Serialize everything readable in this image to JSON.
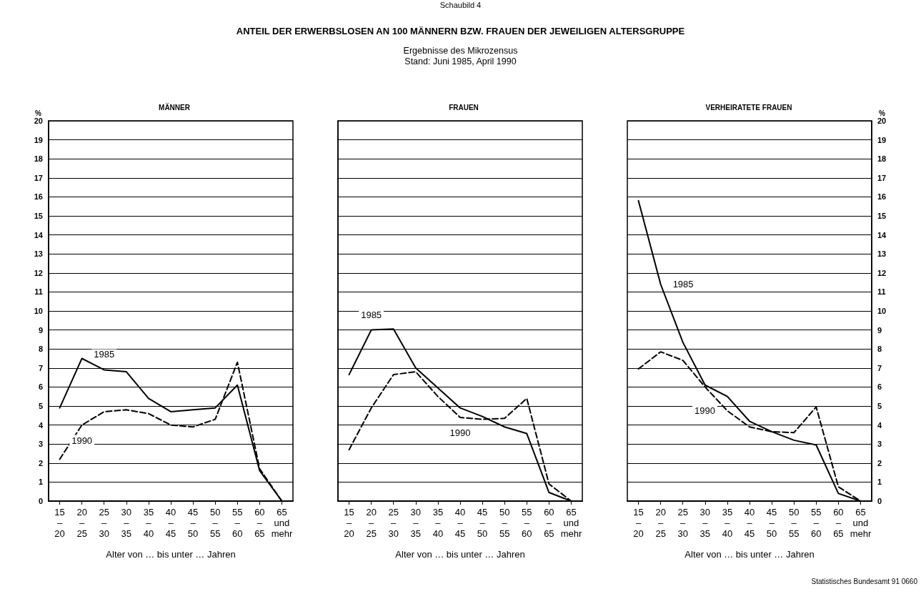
{
  "chart_data": [
    {
      "type": "line",
      "title": "MÄNNER",
      "xlabel": "Alter von … bis unter … Jahren",
      "ylabel": "%",
      "annotations": [
        "Schaubild 4",
        "ANTEIL DER ERWERBSLOSEN AN 100 MÄNNERN BZW. FRAUEN DER JEWEILIGEN ALTERSGRUPPE",
        "Ergebnisse des Mikrozensus",
        "Stand: Juni 1985, April 1990"
      ],
      "categories": [
        "15\n–\n20",
        "20\n–\n25",
        "25\n–\n30",
        "30\n–\n35",
        "35\n–\n40",
        "40\n–\n45",
        "45\n–\n50",
        "50\n–\n55",
        "55\n–\n60",
        "60\n–\n65",
        "65\nund\nmehr"
      ],
      "ylim": [
        0,
        20
      ],
      "yticks": [
        0,
        1,
        2,
        3,
        4,
        5,
        6,
        7,
        8,
        9,
        10,
        11,
        12,
        13,
        14,
        15,
        16,
        17,
        18,
        19,
        20
      ],
      "grid": "y",
      "legend": false,
      "marker": "none",
      "series": [
        {
          "name": "1985",
          "color": "#000000",
          "line_style": "solid",
          "values": [
            4.9,
            7.5,
            6.9,
            6.8,
            5.4,
            4.7,
            4.8,
            4.9,
            6.1,
            1.6,
            0
          ]
        },
        {
          "name": "1990",
          "color": "#000000",
          "line_style": "dashed",
          "values": [
            2.2,
            4.0,
            4.7,
            4.8,
            4.6,
            4.0,
            3.9,
            4.3,
            7.3,
            1.7,
            0
          ]
        }
      ]
    },
    {
      "type": "line",
      "title": "FRAUEN",
      "xlabel": "Alter von … bis unter … Jahren",
      "tick_labels": "x",
      "categories": [
        "15\n–\n20",
        "20\n–\n25",
        "25\n–\n30",
        "30\n–\n35",
        "35\n–\n40",
        "40\n–\n45",
        "45\n–\n50",
        "50\n–\n55",
        "55\n–\n60",
        "60\n–\n65",
        "65\nund\nmehr"
      ],
      "ylim": [
        0,
        20
      ],
      "yticks": [
        0,
        1,
        2,
        3,
        4,
        5,
        6,
        7,
        8,
        9,
        10,
        11,
        12,
        13,
        14,
        15,
        16,
        17,
        18,
        19,
        20
      ],
      "grid": "y",
      "legend": false,
      "marker": "none",
      "series": [
        {
          "name": "1985",
          "color": "#000000",
          "line_style": "solid",
          "values": [
            6.65,
            9.0,
            9.05,
            7.0,
            5.95,
            4.9,
            4.45,
            3.9,
            3.55,
            0.45,
            0
          ]
        },
        {
          "name": "1990",
          "color": "#000000",
          "line_style": "dashed",
          "values": [
            2.7,
            4.9,
            6.65,
            6.8,
            5.5,
            4.4,
            4.3,
            4.35,
            5.4,
            0.9,
            0
          ]
        }
      ]
    },
    {
      "type": "line",
      "title": "VERHEIRATETE FRAUEN",
      "xlabel": "Alter von … bis unter … Jahren",
      "y2label": "%",
      "annotations": [
        "Statistisches Bundesamt 91 0660"
      ],
      "categories": [
        "15\n–\n20",
        "20\n–\n25",
        "25\n–\n30",
        "30\n–\n35",
        "35\n–\n40",
        "40\n–\n45",
        "45\n–\n50",
        "50\n–\n55",
        "55\n–\n60",
        "60\n–\n65",
        "65\nund\nmehr"
      ],
      "y2lim": [
        0,
        20
      ],
      "y2ticks": [
        0,
        1,
        2,
        3,
        4,
        5,
        6,
        7,
        8,
        9,
        10,
        11,
        12,
        13,
        14,
        15,
        16,
        17,
        18,
        19,
        20
      ],
      "grid": "y",
      "legend": false,
      "marker": "none",
      "series": [
        {
          "name": "1985",
          "color": "#000000",
          "axis": "y2",
          "line_style": "solid",
          "values": [
            15.8,
            11.4,
            8.35,
            6.1,
            5.5,
            4.2,
            3.65,
            3.2,
            2.95,
            0.4,
            0
          ]
        },
        {
          "name": "1990",
          "color": "#000000",
          "axis": "y2",
          "line_style": "dashed",
          "values": [
            6.95,
            7.85,
            7.4,
            6.0,
            4.75,
            3.9,
            3.65,
            3.6,
            4.95,
            0.75,
            0
          ]
        }
      ]
    }
  ]
}
